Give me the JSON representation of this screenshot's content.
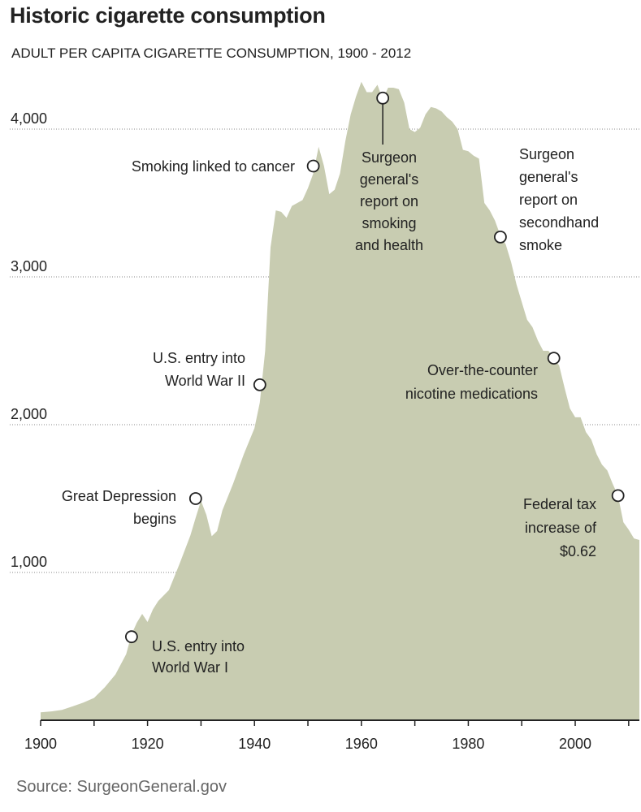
{
  "header": {
    "title": "Historic cigarette consumption",
    "subtitle": "ADULT PER CAPITA CIGARETTE CONSUMPTION, 1900 - 2012"
  },
  "footer": {
    "source": "Source: SurgeonGeneral.gov"
  },
  "colors": {
    "area": "#c8ccb1",
    "gridline": "#8a8a8a",
    "text": "#222222"
  },
  "chart_data": {
    "type": "area",
    "title": "Historic cigarette consumption",
    "subtitle": "ADULT PER CAPITA CIGARETTE CONSUMPTION, 1900 - 2012",
    "xlabel": "",
    "ylabel": "",
    "xlim": [
      1900,
      2012
    ],
    "ylim": [
      0,
      4400
    ],
    "grid": true,
    "x_ticks": [
      {
        "value": 1900,
        "label": "1900"
      },
      {
        "value": 1920,
        "label": "1920"
      },
      {
        "value": 1940,
        "label": "1940"
      },
      {
        "value": 1960,
        "label": "1960"
      },
      {
        "value": 1980,
        "label": "1980"
      },
      {
        "value": 2000,
        "label": "2000"
      }
    ],
    "y_ticks": [
      {
        "value": 1000,
        "label": "1,000"
      },
      {
        "value": 2000,
        "label": "2,000"
      },
      {
        "value": 3000,
        "label": "3,000"
      },
      {
        "value": 4000,
        "label": "4,000"
      }
    ],
    "series": [
      {
        "x": [
          1900,
          1902,
          1904,
          1906,
          1908,
          1910,
          1912,
          1914,
          1916,
          1917,
          1918,
          1919,
          1920,
          1921,
          1922,
          1924,
          1926,
          1928,
          1929,
          1930,
          1931,
          1932,
          1933,
          1934,
          1936,
          1938,
          1940,
          1941,
          1942,
          1943,
          1944,
          1945,
          1946,
          1947,
          1948,
          1949,
          1950,
          1951,
          1952,
          1953,
          1954,
          1955,
          1956,
          1957,
          1958,
          1959,
          1960,
          1961,
          1962,
          1963,
          1964,
          1965,
          1966,
          1967,
          1968,
          1969,
          1970,
          1971,
          1972,
          1973,
          1974,
          1975,
          1976,
          1977,
          1978,
          1979,
          1980,
          1981,
          1982,
          1983,
          1984,
          1985,
          1986,
          1987,
          1988,
          1989,
          1990,
          1991,
          1992,
          1993,
          1994,
          1995,
          1996,
          1997,
          1998,
          1999,
          2000,
          2001,
          2002,
          2003,
          2004,
          2005,
          2006,
          2007,
          2008,
          2009,
          2010,
          2011,
          2012
        ],
        "y": [
          54,
          60,
          70,
          94,
          120,
          151,
          223,
          310,
          447,
          580,
          660,
          720,
          665,
          750,
          807,
          880,
          1060,
          1250,
          1370,
          1485,
          1390,
          1245,
          1280,
          1420,
          1600,
          1800,
          1976,
          2150,
          2500,
          3200,
          3450,
          3440,
          3400,
          3480,
          3500,
          3520,
          3600,
          3700,
          3880,
          3750,
          3560,
          3590,
          3700,
          3920,
          4100,
          4220,
          4320,
          4250,
          4250,
          4300,
          4200,
          4280,
          4280,
          4270,
          4180,
          4000,
          3980,
          4010,
          4100,
          4150,
          4140,
          4120,
          4080,
          4050,
          4000,
          3860,
          3850,
          3820,
          3800,
          3500,
          3450,
          3380,
          3280,
          3220,
          3100,
          2950,
          2830,
          2710,
          2660,
          2570,
          2500,
          2500,
          2450,
          2400,
          2250,
          2110,
          2050,
          2050,
          1950,
          1900,
          1800,
          1730,
          1690,
          1600,
          1520,
          1340,
          1290,
          1230,
          1220
        ]
      }
    ],
    "annotations": [
      {
        "x": 1917,
        "y": 565,
        "lines": [
          "U.S. entry into",
          "World War I"
        ]
      },
      {
        "x": 1929,
        "y": 1500,
        "lines": [
          "Great Depression",
          "begins"
        ]
      },
      {
        "x": 1941,
        "y": 2270,
        "lines": [
          "U.S. entry into",
          "World War II"
        ]
      },
      {
        "x": 1951,
        "y": 3750,
        "lines": [
          "Smoking linked to cancer"
        ]
      },
      {
        "x": 1964,
        "y": 4210,
        "lines": [
          "Surgeon",
          "general's",
          "report on",
          "smoking",
          "and health"
        ]
      },
      {
        "x": 1986,
        "y": 3270,
        "lines": [
          "Surgeon",
          "general's",
          "report on",
          "secondhand",
          "smoke"
        ]
      },
      {
        "x": 1996,
        "y": 2450,
        "lines": [
          "Over-the-counter",
          "nicotine medications"
        ]
      },
      {
        "x": 2008,
        "y": 1520,
        "lines": [
          "Federal tax",
          "increase of",
          "$0.62"
        ]
      }
    ]
  }
}
